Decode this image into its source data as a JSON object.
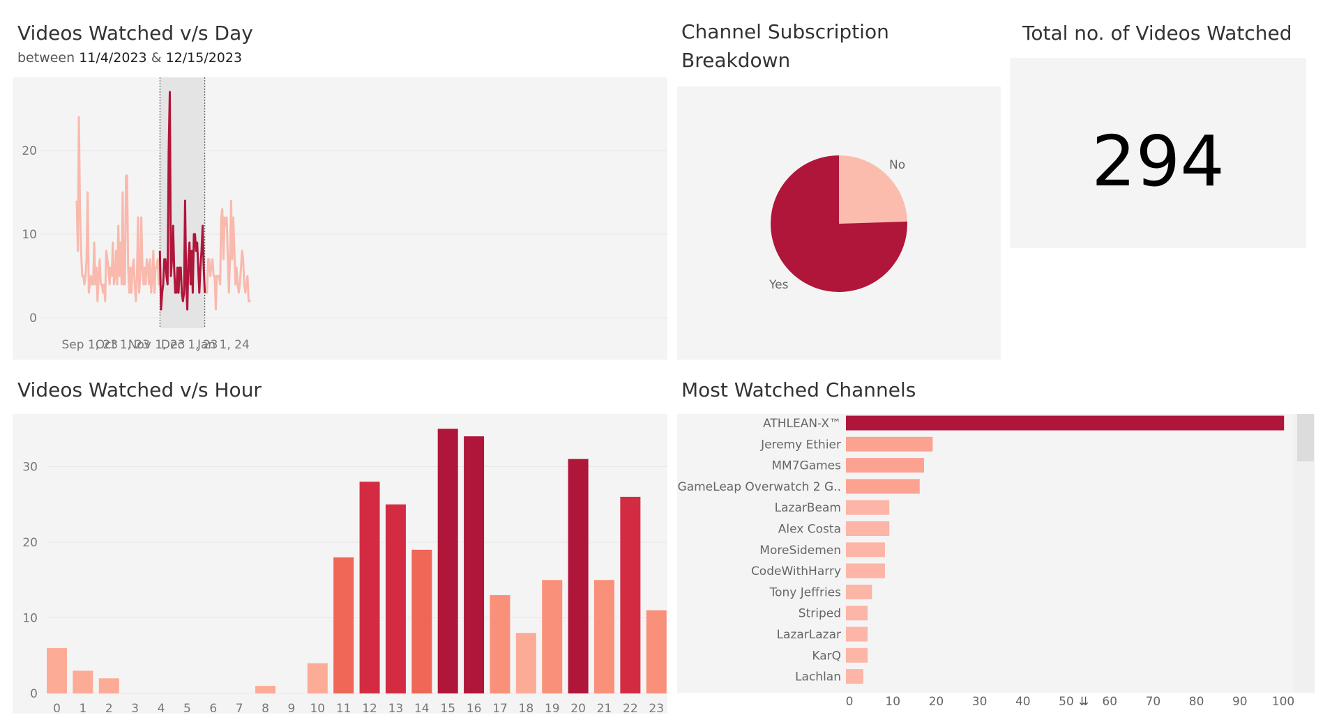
{
  "day_chart": {
    "title": "Videos Watched v/s Day",
    "subtitle_prefix": "between",
    "subtitle_start": "11/4/2023",
    "subtitle_amp": "&",
    "subtitle_end": "12/15/2023"
  },
  "pie_chart": {
    "title_line1": "Channel Subscription",
    "title_line2": "Breakdown"
  },
  "kpi": {
    "title": "Total no. of Videos Watched",
    "value": "294"
  },
  "hour_chart": {
    "title": "Videos Watched v/s Hour"
  },
  "channels_chart": {
    "title": "Most Watched Channels"
  },
  "colors": {
    "light": "#f9b9ad",
    "dark": "#b0153a",
    "panel_bg": "#f4f4f4",
    "selection_bg": "#e4e4e4",
    "bar_light": "#fcab96",
    "bar_dark": "#b0153a",
    "pie_no": "#fbbcae",
    "pie_yes": "#b0153a"
  },
  "chart_data": [
    {
      "type": "line",
      "title": "Videos Watched v/s Day",
      "x_start": "2023-08-20",
      "x_tick_labels": [
        "Sep 1, 23",
        "Oct 1, 23",
        "Nov 1, 23",
        "Dec 1, 23",
        "Jan 1, 24"
      ],
      "x_tick_dates": [
        "2023-09-01",
        "2023-10-01",
        "2023-11-01",
        "2023-12-01",
        "2024-01-01"
      ],
      "y_ticks": [
        0,
        10,
        20
      ],
      "ylim": [
        0,
        28
      ],
      "highlight_range": [
        "2023-11-04",
        "2023-12-15"
      ],
      "values": [
        14,
        8,
        24,
        13,
        8,
        5,
        5,
        4,
        5,
        7,
        15,
        3,
        4,
        5,
        4,
        4,
        9,
        4,
        6,
        2,
        5,
        7,
        4,
        4,
        3,
        4,
        2,
        8,
        7,
        6,
        4,
        6,
        5,
        9,
        4,
        5,
        8,
        4,
        11,
        5,
        9,
        4,
        15,
        4,
        4,
        17,
        17,
        6,
        3,
        6,
        3,
        6,
        7,
        4,
        2,
        5,
        12,
        3,
        5,
        12,
        6,
        4,
        6,
        4,
        7,
        6,
        4,
        7,
        3,
        5,
        8,
        3,
        6,
        6,
        7,
        4,
        8,
        1,
        3,
        4,
        7,
        7,
        5,
        4,
        20,
        27,
        5,
        7,
        11,
        6,
        3,
        3,
        6,
        3,
        6,
        6,
        3,
        2,
        3,
        14,
        4,
        1,
        7,
        9,
        4,
        8,
        3,
        10,
        10,
        8,
        9,
        6,
        3,
        6,
        8,
        11,
        6,
        3,
        3,
        3,
        7,
        7,
        5,
        6,
        7,
        5,
        5,
        1,
        5,
        5,
        5,
        4,
        12,
        13,
        7,
        12,
        11,
        12,
        7,
        3,
        7,
        14,
        7,
        12,
        8,
        4,
        6,
        4,
        3,
        4,
        6,
        8,
        7,
        4,
        3,
        4,
        5,
        2,
        2,
        2
      ]
    },
    {
      "type": "pie",
      "title": "Channel Subscription Breakdown",
      "slices": [
        {
          "label": "No",
          "value": 24.5
        },
        {
          "label": "Yes",
          "value": 75.5
        }
      ]
    },
    {
      "type": "bar",
      "title": "Videos Watched v/s Hour",
      "categories": [
        "0",
        "1",
        "2",
        "3",
        "4",
        "5",
        "6",
        "7",
        "8",
        "9",
        "10",
        "11",
        "12",
        "13",
        "14",
        "15",
        "16",
        "17",
        "18",
        "19",
        "20",
        "21",
        "22",
        "23"
      ],
      "values": [
        6,
        3,
        2,
        0,
        0,
        0,
        0,
        0,
        1,
        0,
        4,
        18,
        28,
        25,
        19,
        35,
        34,
        13,
        8,
        15,
        31,
        15,
        26,
        11
      ],
      "y_ticks": [
        0,
        10,
        20,
        30
      ],
      "ylim": [
        0,
        37
      ]
    },
    {
      "type": "bar",
      "orientation": "horizontal",
      "title": "Most Watched Channels",
      "categories": [
        "ATHLEAN-X™",
        "Jeremy Ethier",
        "MM7Games",
        "GameLeap Overwatch 2 G..",
        "LazarBeam",
        "Alex Costa",
        "MoreSidemen",
        "CodeWithHarry",
        "Tony Jeffries",
        "Striped",
        "LazarLazar",
        "KarQ",
        "Lachlan"
      ],
      "values": [
        101,
        20,
        18,
        17,
        10,
        10,
        9,
        9,
        6,
        5,
        5,
        5,
        4
      ],
      "x_ticks": [
        0,
        10,
        20,
        30,
        40,
        50,
        60,
        70,
        80,
        90,
        100
      ],
      "xlim": [
        0,
        105
      ]
    }
  ]
}
